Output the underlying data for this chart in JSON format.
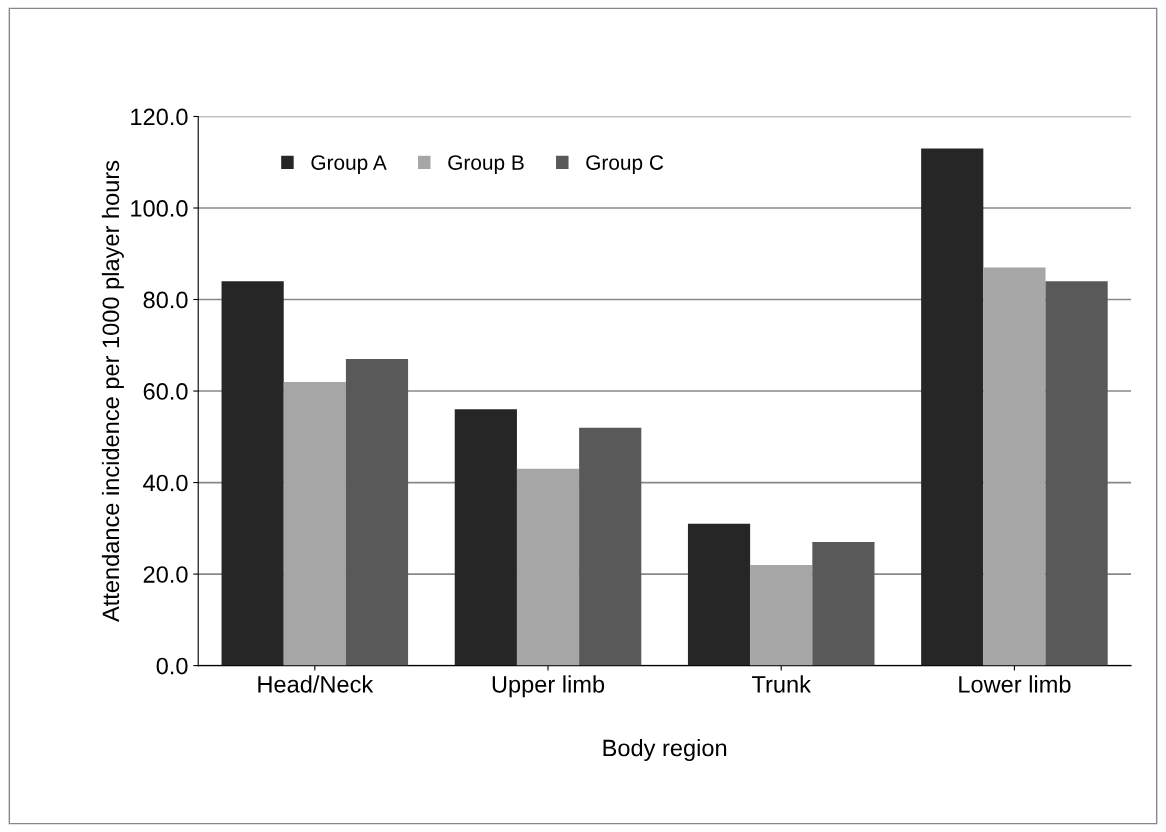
{
  "chart_data": {
    "type": "bar",
    "xlabel": "Body region",
    "ylabel": "Attendance incidence per 1000 player hours",
    "categories": [
      "Head/Neck",
      "Upper limb",
      "Trunk",
      "Lower limb"
    ],
    "series": [
      {
        "name": "Group A",
        "color": "#262626",
        "values": [
          84,
          56,
          31,
          113
        ]
      },
      {
        "name": "Group B",
        "color": "#a6a6a6",
        "values": [
          62,
          43,
          22,
          87
        ]
      },
      {
        "name": "Group C",
        "color": "#595959",
        "values": [
          67,
          52,
          27,
          84
        ]
      }
    ],
    "ylim": [
      0,
      120
    ],
    "yticks": [
      {
        "value": 0,
        "label": "0.0"
      },
      {
        "value": 20,
        "label": "20.0"
      },
      {
        "value": 40,
        "label": "40.0"
      },
      {
        "value": 60,
        "label": "60.0"
      },
      {
        "value": 80,
        "label": "80.0"
      },
      {
        "value": 100,
        "label": "100.0"
      },
      {
        "value": 120,
        "label": "120.0"
      }
    ],
    "grid": "y",
    "legend": "top left"
  }
}
